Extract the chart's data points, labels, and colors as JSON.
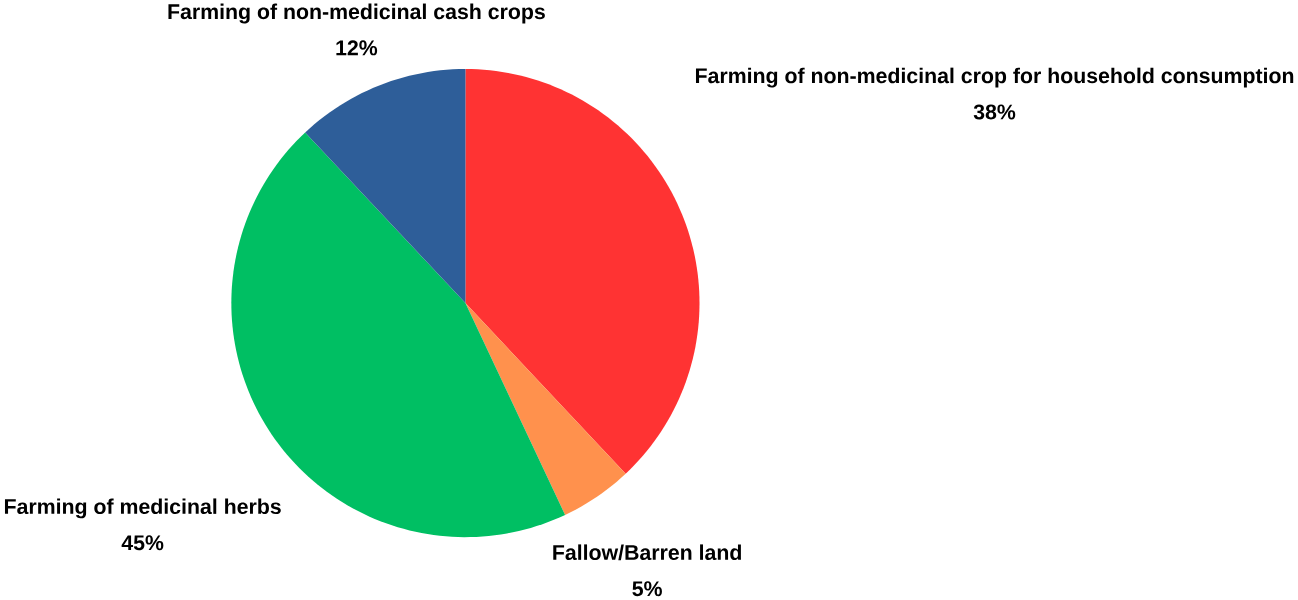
{
  "chart_data": {
    "type": "pie",
    "categories": [
      "Farming of non-medicinal crop for household consumption",
      "Fallow/Barren land",
      "Farming of medicinal herbs",
      "Farming of non-medicinal cash crops"
    ],
    "values": [
      38,
      5,
      45,
      12
    ],
    "value_labels": [
      "38%",
      "5%",
      "45%",
      "12%"
    ],
    "colors": [
      "#ff3333",
      "#ff914d",
      "#00bf63",
      "#2e5e99"
    ]
  }
}
